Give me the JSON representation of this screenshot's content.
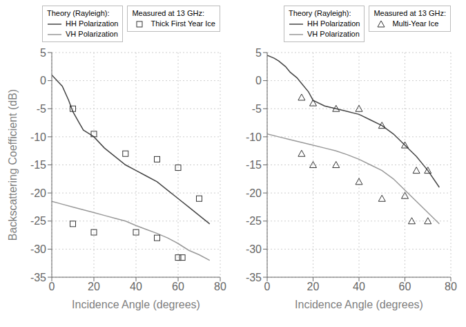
{
  "chart_data": [
    {
      "type": "line",
      "xlabel": "Incidence Angle (degrees)",
      "ylabel": "Backscattering Coefficient (dB)",
      "xlim": [
        0,
        80
      ],
      "ylim": [
        -35,
        5
      ],
      "xticks": [
        0,
        20,
        40,
        60,
        80
      ],
      "yticks": [
        -35,
        -30,
        -25,
        -20,
        -15,
        -10,
        -5,
        0,
        5
      ],
      "grid": true,
      "legend_titles": [
        "Theory (Rayleigh):",
        "Measured at 13 GHz:"
      ],
      "series": [
        {
          "name": "HH Polarization",
          "type": "line",
          "color": "#444444",
          "x": [
            0,
            2,
            5,
            8,
            10,
            13,
            15,
            18,
            20,
            25,
            30,
            35,
            40,
            45,
            50,
            55,
            60,
            65,
            70,
            75
          ],
          "values": [
            1.0,
            0.2,
            -1.0,
            -3.5,
            -5.5,
            -7.5,
            -8.8,
            -9.5,
            -10.0,
            -12.0,
            -13.5,
            -15.0,
            -16.0,
            -17.0,
            -18.0,
            -19.5,
            -21.0,
            -22.5,
            -24.0,
            -25.5
          ]
        },
        {
          "name": "VH Polarization",
          "type": "line",
          "color": "#999999",
          "x": [
            0,
            5,
            10,
            15,
            20,
            25,
            30,
            35,
            40,
            45,
            50,
            55,
            60,
            65,
            70,
            75
          ],
          "values": [
            -21.5,
            -22.0,
            -22.5,
            -23.0,
            -23.5,
            -24.0,
            -24.5,
            -25.0,
            -25.8,
            -26.5,
            -27.2,
            -28.0,
            -29.0,
            -30.2,
            -31.0,
            -32.0
          ]
        },
        {
          "name": "Thick First Year Ice",
          "type": "scatter",
          "marker": "square",
          "color": "#333333",
          "x": [
            10,
            20,
            35,
            50,
            60,
            70,
            10,
            20,
            40,
            50,
            60,
            62
          ],
          "values": [
            -5.0,
            -9.5,
            -13.0,
            -14.0,
            -15.5,
            -21.0,
            -25.5,
            -27.0,
            -27.0,
            -28.0,
            -31.5,
            -31.5
          ]
        }
      ]
    },
    {
      "type": "line",
      "xlabel": "Incidence Angle (degrees)",
      "xlim": [
        0,
        80
      ],
      "ylim": [
        -35,
        5
      ],
      "xticks": [
        0,
        20,
        40,
        60,
        80
      ],
      "yticks": [
        -35,
        -30,
        -25,
        -20,
        -15,
        -10,
        -5,
        0,
        5
      ],
      "grid": true,
      "legend_titles": [
        "Theory (Rayleigh):",
        "Measured at 13 GHz:"
      ],
      "series": [
        {
          "name": "HH Polarization",
          "type": "line",
          "color": "#444444",
          "x": [
            0,
            3,
            5,
            8,
            10,
            13,
            15,
            18,
            20,
            25,
            30,
            35,
            40,
            45,
            50,
            55,
            60,
            65,
            70,
            75
          ],
          "values": [
            4.5,
            4.0,
            3.5,
            2.5,
            1.5,
            0.5,
            -0.5,
            -2.0,
            -3.5,
            -4.5,
            -5.0,
            -5.5,
            -6.0,
            -7.0,
            -8.0,
            -9.5,
            -11.5,
            -13.5,
            -16.0,
            -19.0
          ]
        },
        {
          "name": "VH Polarization",
          "type": "line",
          "color": "#999999",
          "x": [
            0,
            5,
            10,
            15,
            20,
            25,
            30,
            35,
            40,
            45,
            50,
            55,
            60,
            65,
            70,
            75
          ],
          "values": [
            -9.5,
            -10.0,
            -10.5,
            -11.0,
            -11.5,
            -12.0,
            -12.5,
            -13.2,
            -14.0,
            -15.0,
            -16.0,
            -17.5,
            -19.5,
            -21.5,
            -23.5,
            -25.5
          ]
        },
        {
          "name": "Multi-Year Ice",
          "type": "scatter",
          "marker": "triangle",
          "color": "#333333",
          "x": [
            15,
            20,
            30,
            40,
            50,
            60,
            65,
            70,
            15,
            20,
            30,
            40,
            50,
            60,
            63,
            70
          ],
          "values": [
            -3.0,
            -4.0,
            -5.0,
            -5.0,
            -8.0,
            -11.5,
            -16.0,
            -16.0,
            -13.0,
            -15.0,
            -15.0,
            -18.0,
            -21.0,
            -20.5,
            -25.0,
            -25.0
          ]
        }
      ]
    }
  ]
}
